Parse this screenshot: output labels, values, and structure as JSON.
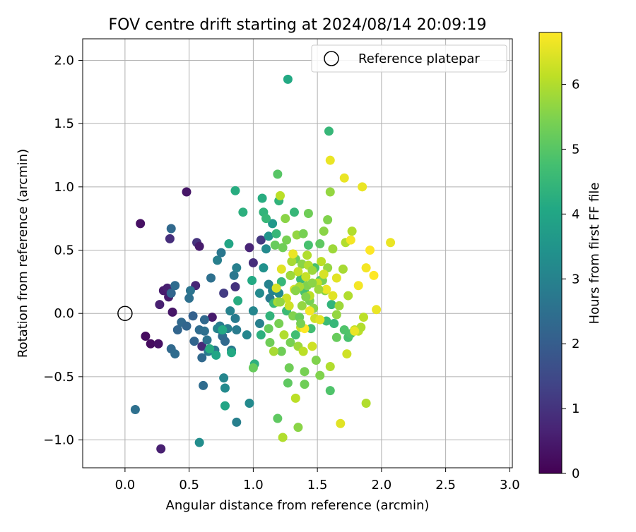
{
  "chart_data": {
    "type": "scatter",
    "title": "FOV centre drift starting at 2024/08/14 20:09:19",
    "xlabel": "Angular distance from reference (arcmin)",
    "ylabel": "Rotation from reference (arcmin)",
    "xlim": [
      -0.33,
      3.02
    ],
    "ylim": [
      -1.22,
      2.17
    ],
    "xticks": [
      0.0,
      0.5,
      1.0,
      1.5,
      2.0,
      2.5,
      3.0
    ],
    "xtick_labels": [
      "0.0",
      "0.5",
      "1.0",
      "1.5",
      "2.0",
      "2.5",
      "3.0"
    ],
    "yticks": [
      -1.0,
      -0.5,
      0.0,
      0.5,
      1.0,
      1.5,
      2.0
    ],
    "ytick_labels": [
      "−1.0",
      "−0.5",
      "0.0",
      "0.5",
      "1.0",
      "1.5",
      "2.0"
    ],
    "grid": true,
    "legend": {
      "position": "top-right",
      "entries": [
        {
          "label": "Reference platepar",
          "marker": "open-circle",
          "color": "#000000"
        }
      ]
    },
    "reference_point": {
      "x": 0.0,
      "y": 0.0
    },
    "colorbar": {
      "label": "Hours from first FF file",
      "colormap": "viridis",
      "range": [
        0,
        6.8
      ],
      "ticks": [
        0,
        1,
        2,
        3,
        4,
        5,
        6
      ],
      "tick_labels": [
        "0",
        "1",
        "2",
        "3",
        "4",
        "5",
        "6"
      ]
    },
    "series": [
      {
        "columns": [
          "x",
          "y",
          "hours"
        ],
        "points": [
          [
            0.12,
            0.71,
            0.3
          ],
          [
            0.48,
            0.96,
            0.4
          ],
          [
            0.28,
            -1.07,
            0.6
          ],
          [
            0.16,
            -0.18,
            0.2
          ],
          [
            0.2,
            -0.24,
            0.2
          ],
          [
            0.26,
            -0.24,
            0.3
          ],
          [
            0.27,
            0.07,
            0.6
          ],
          [
            0.3,
            0.18,
            0.5
          ],
          [
            0.33,
            0.2,
            0.6
          ],
          [
            0.34,
            0.13,
            0.5
          ],
          [
            0.37,
            0.01,
            0.4
          ],
          [
            0.35,
            0.59,
            0.9
          ],
          [
            0.55,
            0.22,
            0.7
          ],
          [
            0.56,
            0.56,
            1.0
          ],
          [
            0.58,
            0.53,
            0.5
          ],
          [
            0.6,
            -0.26,
            0.8
          ],
          [
            0.68,
            -0.03,
            0.5
          ],
          [
            0.77,
            0.16,
            1.2
          ],
          [
            0.86,
            0.21,
            1.0
          ],
          [
            0.97,
            0.52,
            0.7
          ],
          [
            1.0,
            0.4,
            0.9
          ],
          [
            1.06,
            0.58,
            1.1
          ],
          [
            0.08,
            -0.76,
            2.5
          ],
          [
            0.36,
            0.67,
            2.3
          ],
          [
            0.36,
            0.16,
            2.2
          ],
          [
            0.39,
            0.22,
            2.4
          ],
          [
            0.36,
            -0.28,
            2.3
          ],
          [
            0.39,
            -0.32,
            2.4
          ],
          [
            0.41,
            -0.13,
            2.2
          ],
          [
            0.44,
            -0.07,
            2.3
          ],
          [
            0.48,
            -0.1,
            2.2
          ],
          [
            0.5,
            0.12,
            2.5
          ],
          [
            0.51,
            0.18,
            2.6
          ],
          [
            0.53,
            -0.02,
            2.1
          ],
          [
            0.54,
            -0.22,
            2.2
          ],
          [
            0.58,
            -0.13,
            2.4
          ],
          [
            0.6,
            -0.35,
            2.3
          ],
          [
            0.61,
            -0.57,
            2.4
          ],
          [
            0.62,
            -0.05,
            2.3
          ],
          [
            0.62,
            -0.14,
            2.5
          ],
          [
            0.64,
            -0.21,
            2.6
          ],
          [
            0.65,
            -0.3,
            2.8
          ],
          [
            0.67,
            0.28,
            2.5
          ],
          [
            0.7,
            -0.29,
            2.7
          ],
          [
            0.72,
            0.42,
            2.9
          ],
          [
            0.74,
            -0.1,
            2.8
          ],
          [
            0.75,
            0.48,
            2.7
          ],
          [
            0.76,
            -0.18,
            2.4
          ],
          [
            0.78,
            -0.22,
            2.3
          ],
          [
            0.8,
            -0.12,
            2.9
          ],
          [
            0.82,
            0.02,
            3.0
          ],
          [
            0.83,
            -0.29,
            2.8
          ],
          [
            0.85,
            0.3,
            2.7
          ],
          [
            0.86,
            -0.04,
            2.8
          ],
          [
            0.87,
            -0.13,
            2.8
          ],
          [
            0.87,
            0.36,
            2.9
          ],
          [
            0.87,
            -0.86,
            2.9
          ],
          [
            0.72,
            -0.12,
            3.0
          ],
          [
            0.75,
            -0.13,
            2.9
          ],
          [
            0.77,
            -0.51,
            3.1
          ],
          [
            0.78,
            -0.59,
            3.2
          ],
          [
            0.58,
            -1.02,
            3.3
          ],
          [
            0.95,
            -0.17,
            3.1
          ],
          [
            0.97,
            -0.71,
            3.2
          ],
          [
            1.0,
            0.02,
            3.1
          ],
          [
            1.05,
            -0.08,
            2.9
          ],
          [
            1.1,
            0.51,
            3.2
          ],
          [
            1.12,
            0.23,
            3.0
          ],
          [
            1.13,
            0.12,
            2.8
          ],
          [
            1.15,
            0.18,
            3.0
          ],
          [
            1.2,
            0.16,
            3.2
          ],
          [
            1.05,
            0.16,
            3.2
          ],
          [
            1.08,
            0.36,
            3.4
          ],
          [
            1.12,
            0.61,
            3.5
          ],
          [
            1.15,
            0.71,
            3.6
          ],
          [
            0.66,
            -0.28,
            4.2
          ],
          [
            0.71,
            -0.33,
            4.0
          ],
          [
            0.76,
            -0.13,
            4.1
          ],
          [
            0.78,
            -0.73,
            4.0
          ],
          [
            0.81,
            0.55,
            4.0
          ],
          [
            0.83,
            -0.31,
            4.1
          ],
          [
            0.88,
            0.1,
            4.2
          ],
          [
            0.86,
            0.97,
            4.2
          ],
          [
            0.92,
            0.8,
            4.3
          ],
          [
            0.99,
            0.26,
            4.1
          ],
          [
            1.01,
            -0.4,
            4.3
          ],
          [
            1.06,
            -0.17,
            4.3
          ],
          [
            1.07,
            0.91,
            4.2
          ],
          [
            1.08,
            0.8,
            4.4
          ],
          [
            1.1,
            0.75,
            4.5
          ],
          [
            1.13,
            -0.02,
            4.4
          ],
          [
            1.16,
            0.08,
            4.5
          ],
          [
            1.18,
            0.63,
            4.5
          ],
          [
            1.2,
            0.89,
            4.4
          ],
          [
            1.22,
            0.25,
            4.5
          ],
          [
            1.26,
            0.02,
            4.6
          ],
          [
            1.27,
            1.85,
            4.1
          ],
          [
            1.29,
            0.3,
            4.6
          ],
          [
            1.32,
            0.8,
            4.5
          ],
          [
            1.33,
            -0.17,
            4.7
          ],
          [
            1.37,
            0.27,
            4.6
          ],
          [
            1.4,
            0.17,
            4.8
          ],
          [
            1.43,
            0.54,
            4.8
          ],
          [
            1.45,
            -0.12,
            4.7
          ],
          [
            1.48,
            0.36,
            4.8
          ],
          [
            1.52,
            0.26,
            4.9
          ],
          [
            1.57,
            -0.06,
            4.6
          ],
          [
            1.59,
            1.44,
            4.5
          ],
          [
            1.61,
            0.07,
            4.4
          ],
          [
            1.63,
            -0.08,
            4.5
          ],
          [
            1.6,
            -0.61,
            4.9
          ],
          [
            1.65,
            -0.19,
            5.2
          ],
          [
            1.71,
            -0.13,
            4.9
          ],
          [
            1.74,
            -0.19,
            4.8
          ],
          [
            1.76,
            -0.16,
            4.9
          ],
          [
            1.19,
            1.1,
            5.0
          ],
          [
            1.0,
            -0.43,
            5.2
          ],
          [
            1.12,
            -0.12,
            5.2
          ],
          [
            1.13,
            -0.23,
            5.3
          ],
          [
            1.17,
            0.54,
            5.2
          ],
          [
            1.19,
            -0.83,
            5.1
          ],
          [
            1.22,
            -0.3,
            5.3
          ],
          [
            1.23,
            0.52,
            5.3
          ],
          [
            1.27,
            -0.55,
            5.1
          ],
          [
            1.28,
            -0.43,
            5.3
          ],
          [
            1.29,
            -0.23,
            5.4
          ],
          [
            1.31,
            -0.02,
            5.5
          ],
          [
            1.33,
            0.43,
            5.3
          ],
          [
            1.35,
            -0.9,
            5.6
          ],
          [
            1.36,
            -0.03,
            5.2
          ],
          [
            1.38,
            0.39,
            5.6
          ],
          [
            1.4,
            -0.46,
            5.4
          ],
          [
            1.42,
            0.22,
            5.5
          ],
          [
            1.44,
            0.1,
            5.4
          ],
          [
            1.47,
            0.04,
            5.6
          ],
          [
            1.49,
            -0.37,
            5.5
          ],
          [
            1.52,
            -0.49,
            5.5
          ],
          [
            1.54,
            0.26,
            5.4
          ],
          [
            1.56,
            0.18,
            5.6
          ],
          [
            1.58,
            0.36,
            5.7
          ],
          [
            1.6,
            0.96,
            5.7
          ],
          [
            1.62,
            0.51,
            5.8
          ],
          [
            1.65,
            -0.01,
            5.7
          ],
          [
            1.67,
            0.06,
            5.8
          ],
          [
            1.7,
            0.35,
            5.9
          ],
          [
            1.72,
            0.56,
            6.0
          ],
          [
            1.74,
            0.14,
            6.0
          ],
          [
            1.77,
            0.65,
            6.0
          ],
          [
            1.79,
            -0.13,
            6.2
          ],
          [
            1.82,
            -0.14,
            6.1
          ],
          [
            1.84,
            -0.11,
            6.0
          ],
          [
            1.86,
            -0.03,
            6.1
          ],
          [
            1.88,
            -0.71,
            6.0
          ],
          [
            1.21,
            0.93,
            6.1
          ],
          [
            1.23,
            -0.98,
            6.0
          ],
          [
            1.3,
            0.41,
            5.9
          ],
          [
            1.33,
            -0.67,
            6.1
          ],
          [
            1.35,
            -0.26,
            5.8
          ],
          [
            1.37,
            -0.11,
            6.2
          ],
          [
            1.39,
            -0.3,
            6.1
          ],
          [
            1.41,
            0.29,
            6.2
          ],
          [
            1.43,
            0.38,
            6.0
          ],
          [
            1.46,
            -0.26,
            6.3
          ],
          [
            1.48,
            -0.04,
            6.3
          ],
          [
            1.5,
            0.24,
            6.2
          ],
          [
            1.52,
            -0.05,
            6.5
          ],
          [
            1.55,
            0.31,
            6.4
          ],
          [
            1.57,
            0.19,
            6.6
          ],
          [
            1.6,
            1.21,
            6.6
          ],
          [
            1.62,
            0.14,
            6.5
          ],
          [
            1.65,
            0.28,
            6.5
          ],
          [
            1.68,
            -0.87,
            6.5
          ],
          [
            1.71,
            1.07,
            6.6
          ],
          [
            1.73,
            -0.32,
            6.3
          ],
          [
            1.76,
            0.58,
            6.7
          ],
          [
            1.79,
            -0.14,
            6.6
          ],
          [
            1.82,
            0.22,
            6.7
          ],
          [
            1.85,
            1.0,
            6.6
          ],
          [
            1.88,
            0.36,
            6.7
          ],
          [
            1.91,
            0.5,
            6.8
          ],
          [
            1.94,
            0.3,
            6.8
          ],
          [
            1.96,
            0.03,
            6.6
          ],
          [
            2.07,
            0.56,
            6.6
          ],
          [
            1.4,
            -0.12,
            6.8
          ],
          [
            1.44,
            0.02,
            6.7
          ],
          [
            1.31,
            0.47,
            6.6
          ],
          [
            1.22,
            0.35,
            6.5
          ],
          [
            1.18,
            0.2,
            6.4
          ],
          [
            1.26,
            0.12,
            6.3
          ],
          [
            1.35,
            0.33,
            6.2
          ],
          [
            1.24,
            -0.17,
            6.0
          ],
          [
            1.42,
            0.46,
            6.0
          ],
          [
            1.53,
            0.41,
            6.1
          ],
          [
            1.28,
            0.06,
            6.3
          ],
          [
            1.19,
            0.09,
            5.9
          ],
          [
            1.32,
            0.19,
            6.4
          ],
          [
            1.46,
            0.34,
            5.8
          ],
          [
            1.16,
            -0.3,
            5.9
          ],
          [
            1.34,
            0.62,
            5.7
          ],
          [
            1.55,
            0.65,
            5.6
          ],
          [
            1.58,
            0.74,
            5.5
          ],
          [
            1.39,
            0.63,
            5.4
          ],
          [
            1.25,
            0.75,
            5.6
          ],
          [
            1.43,
            0.79,
            5.3
          ],
          [
            1.52,
            0.55,
            5.1
          ],
          [
            1.36,
            0.21,
            5.9
          ],
          [
            1.4,
            -0.56,
            5.3
          ],
          [
            1.44,
            0.14,
            6.1
          ],
          [
            1.6,
            -0.42,
            6.0
          ],
          [
            1.21,
            0.09,
            5.7
          ],
          [
            1.29,
            0.3,
            5.8
          ],
          [
            1.33,
            0.18,
            5.6
          ],
          [
            1.38,
            0.06,
            5.7
          ],
          [
            1.41,
            0.13,
            5.5
          ],
          [
            1.46,
            0.24,
            5.6
          ],
          [
            1.51,
            0.19,
            5.8
          ],
          [
            1.37,
            -0.08,
            5.4
          ],
          [
            1.2,
            -0.08,
            5.4
          ],
          [
            1.26,
            0.58,
            5.4
          ]
        ]
      }
    ]
  }
}
